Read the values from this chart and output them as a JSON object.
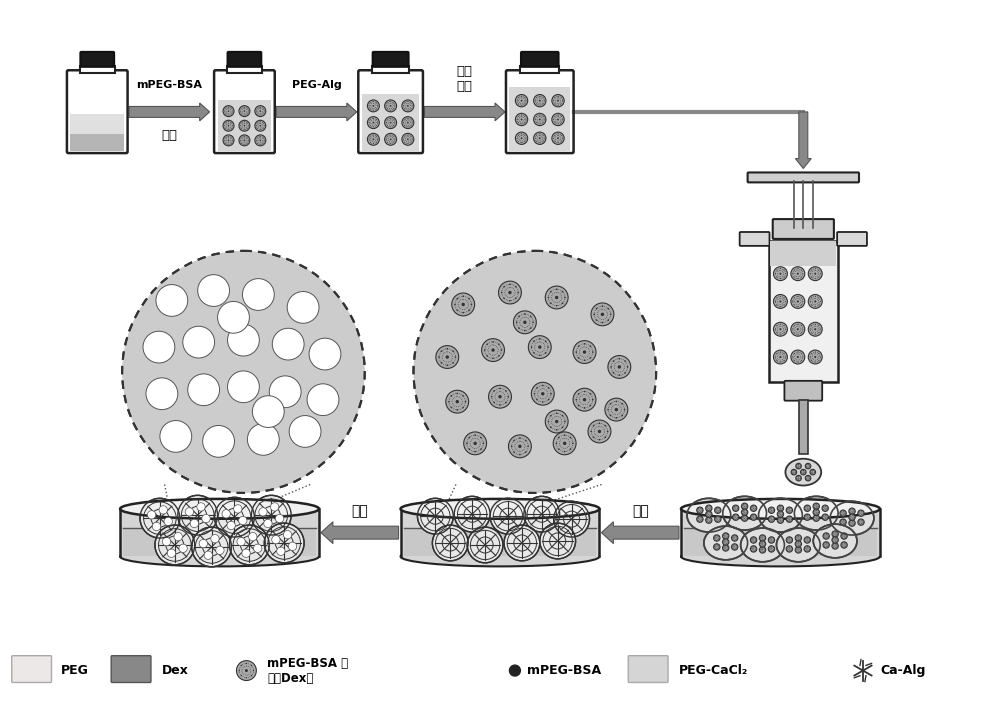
{
  "bg_color": "#ffffff",
  "fig_width": 10.0,
  "fig_height": 7.19,
  "dpi": 100,
  "label_mPEG_BSA": "mPEG-BSA",
  "label_PEG_Alg": "PEG-Alg",
  "label_emulsify": "乳化",
  "label_slow_mix": "缓慢\n混合",
  "label_crosslink": "交联",
  "label_wash": "清洗",
  "legend_PEG": "PEG",
  "legend_Dex": "Dex",
  "legend_mPEG_BSA_stable": "mPEG-BSA 稳\n定的Dex相",
  "legend_mPEG_BSA": "mPEG-BSA",
  "legend_PEG_CaCl2": "PEG-CaCl₂",
  "legend_Ca_Alg": "Ca-Alg",
  "arrow_gray": "#888888",
  "bottle_white": "#ffffff",
  "bottle_cap": "#1a1a1a",
  "liquid_light": "#e8e8e8",
  "liquid_gray": "#c8c8c8",
  "liquid_dark": "#aaaaaa",
  "sphere_dark": "#666666",
  "sphere_mid": "#999999",
  "syringe_light": "#e0e0e0",
  "syringe_dark": "#888888",
  "dish_bg": "#c8c8c8",
  "circle_bg": "#cccccc",
  "peg_legend_color": "#f0f0e8",
  "dex_legend_color": "#888888"
}
